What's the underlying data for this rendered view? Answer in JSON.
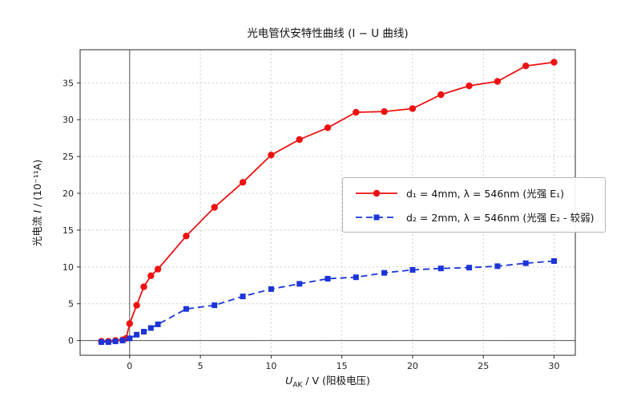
{
  "chart_data": {
    "type": "line",
    "title": "光电管伏安特性曲线 (I − U 曲线)",
    "xlabel": "U_AK / V (阳极电压)",
    "xlabel_parts": {
      "sym": "U",
      "sub": "AK",
      "rest": " / V (阳极电压)"
    },
    "ylabel": "光电流 I / (10⁻¹¹A)",
    "ylabel_parts": {
      "pre": "光电流 ",
      "sym": "I",
      "rest": " / (10⁻¹¹A)"
    },
    "xlim": [
      -3.5,
      31.5
    ],
    "ylim": [
      -2,
      39.5
    ],
    "xticks": [
      0,
      5,
      10,
      15,
      20,
      25,
      30
    ],
    "yticks": [
      0,
      5,
      10,
      15,
      20,
      25,
      30,
      35
    ],
    "grid": true,
    "legend_position": "center right",
    "series": [
      {
        "name": "d₁ = 4mm, λ = 546nm (光强 E₁)",
        "color": "#ee1111",
        "marker": "circle",
        "linestyle": "solid",
        "x": [
          -2,
          -1.5,
          -1,
          -0.5,
          -0.25,
          0,
          0.5,
          1,
          1.5,
          2,
          4,
          6,
          8,
          10,
          12,
          14,
          16,
          18,
          20,
          22,
          24,
          26,
          28,
          30
        ],
        "y": [
          -0.1,
          -0.1,
          0,
          0.1,
          0.3,
          2.3,
          4.8,
          7.3,
          8.8,
          9.7,
          14.2,
          18.1,
          21.5,
          25.2,
          27.3,
          28.9,
          31.0,
          31.1,
          31.5,
          33.4,
          34.6,
          35.2,
          37.3,
          37.8
        ]
      },
      {
        "name": "d₂ = 2mm, λ = 546nm (光强 E₂ - 较弱)",
        "color": "#1b35d8",
        "marker": "square",
        "linestyle": "dashed",
        "x": [
          -2,
          -1.5,
          -1,
          -0.5,
          0,
          0.5,
          1,
          1.5,
          2,
          4,
          6,
          8,
          10,
          12,
          14,
          16,
          18,
          20,
          22,
          24,
          26,
          28,
          30
        ],
        "y": [
          -0.2,
          -0.2,
          -0.1,
          0,
          0.3,
          0.8,
          1.2,
          1.7,
          2.2,
          4.3,
          4.8,
          6.0,
          7.0,
          7.7,
          8.4,
          8.6,
          9.2,
          9.6,
          9.8,
          9.9,
          10.1,
          10.5,
          10.8
        ]
      }
    ]
  }
}
